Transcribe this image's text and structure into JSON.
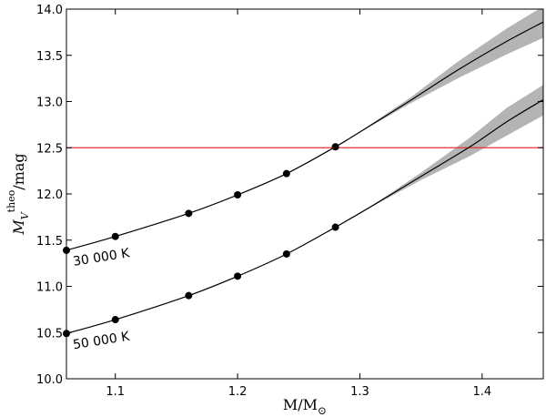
{
  "chart_data": {
    "type": "line",
    "title": "",
    "xlabel": "M/M",
    "xlabel_sub": "⊙",
    "ylabel": "M",
    "ylabel_sub": "V",
    "ylabel_sup": "theo",
    "ylabel_suffix": "/mag",
    "xlim": [
      1.06,
      1.45
    ],
    "ylim": [
      10.0,
      14.0
    ],
    "xticks": [
      1.1,
      1.2,
      1.3,
      1.4
    ],
    "xtick_labels": [
      "1.1",
      "1.2",
      "1.3",
      "1.4"
    ],
    "yticks": [
      10.0,
      10.5,
      11.0,
      11.5,
      12.0,
      12.5,
      13.0,
      13.5,
      14.0
    ],
    "ytick_labels": [
      "10.0",
      "10.5",
      "11.0",
      "11.5",
      "12.0",
      "12.5",
      "13.0",
      "13.5",
      "14.0"
    ],
    "grid": false,
    "reference_line": {
      "y": 12.5,
      "color": "#e8302e"
    },
    "series": [
      {
        "name": "30 000 K",
        "color": "#000000",
        "band_color": "#b4b4b4",
        "points": [
          {
            "x": 1.06,
            "y": 11.39
          },
          {
            "x": 1.1,
            "y": 11.54
          },
          {
            "x": 1.16,
            "y": 11.79
          },
          {
            "x": 1.2,
            "y": 11.99
          },
          {
            "x": 1.24,
            "y": 12.22
          },
          {
            "x": 1.28,
            "y": 12.51
          }
        ],
        "extrapolation": [
          {
            "x": 1.28,
            "y": 12.51,
            "lo": 12.51,
            "hi": 12.51
          },
          {
            "x": 1.3,
            "y": 12.67,
            "lo": 12.665,
            "hi": 12.675
          },
          {
            "x": 1.34,
            "y": 13.0,
            "lo": 12.97,
            "hi": 13.03
          },
          {
            "x": 1.38,
            "y": 13.34,
            "lo": 13.25,
            "hi": 13.43
          },
          {
            "x": 1.42,
            "y": 13.65,
            "lo": 13.51,
            "hi": 13.79
          },
          {
            "x": 1.45,
            "y": 13.86,
            "lo": 13.69,
            "hi": 14.03
          }
        ]
      },
      {
        "name": "50 000 K",
        "color": "#000000",
        "band_color": "#b4b4b4",
        "points": [
          {
            "x": 1.06,
            "y": 10.49
          },
          {
            "x": 1.1,
            "y": 10.64
          },
          {
            "x": 1.16,
            "y": 10.9
          },
          {
            "x": 1.2,
            "y": 11.11
          },
          {
            "x": 1.24,
            "y": 11.35
          },
          {
            "x": 1.28,
            "y": 11.64
          }
        ],
        "extrapolation": [
          {
            "x": 1.28,
            "y": 11.64,
            "lo": 11.64,
            "hi": 11.64
          },
          {
            "x": 1.31,
            "y": 11.87,
            "lo": 11.865,
            "hi": 11.875
          },
          {
            "x": 1.35,
            "y": 12.19,
            "lo": 12.15,
            "hi": 12.23
          },
          {
            "x": 1.39,
            "y": 12.51,
            "lo": 12.41,
            "hi": 12.61
          },
          {
            "x": 1.42,
            "y": 12.78,
            "lo": 12.63,
            "hi": 12.93
          },
          {
            "x": 1.45,
            "y": 13.02,
            "lo": 12.85,
            "hi": 13.18
          }
        ]
      }
    ]
  }
}
